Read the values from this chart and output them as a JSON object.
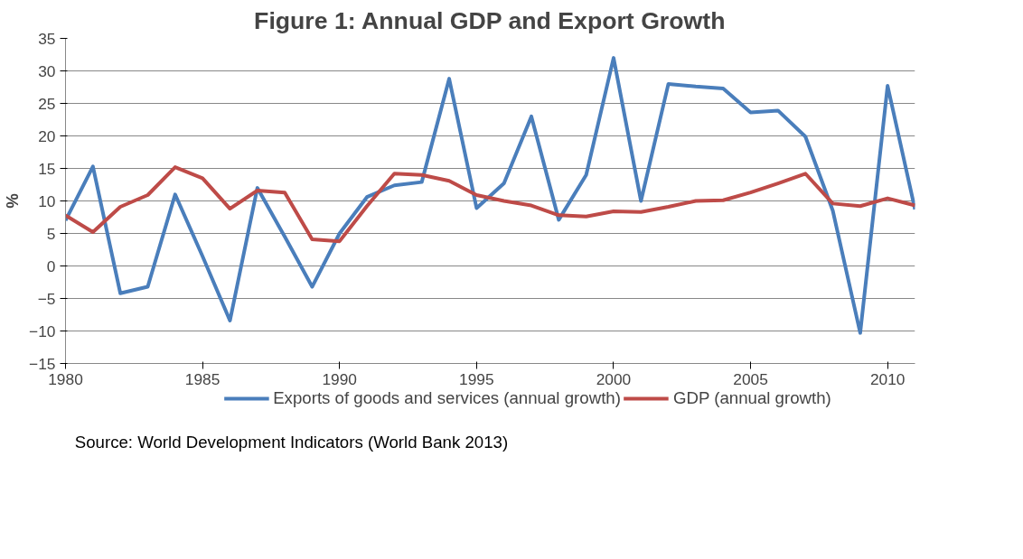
{
  "chart_data": {
    "type": "line",
    "title": "Figure 1: Annual GDP and Export Growth",
    "ylabel": "%",
    "x": [
      1980,
      1981,
      1982,
      1983,
      1984,
      1985,
      1986,
      1987,
      1988,
      1989,
      1990,
      1991,
      1992,
      1993,
      1994,
      1995,
      1996,
      1997,
      1998,
      1999,
      2000,
      2001,
      2002,
      2003,
      2004,
      2005,
      2006,
      2007,
      2008,
      2009,
      2010,
      2011
    ],
    "series": [
      {
        "name": "Exports of goods and services (annual growth)",
        "color": "#4a7ebb",
        "values": [
          7,
          15.3,
          -4.2,
          -3.2,
          11,
          1.5,
          -8.4,
          12,
          4.5,
          -3.2,
          5,
          10.6,
          12.4,
          12.9,
          28.8,
          8.9,
          12.7,
          23,
          7.1,
          14,
          32,
          10,
          28,
          27.6,
          27.3,
          23.6,
          23.9,
          19.9,
          8.5,
          -10.3,
          27.7,
          8.7
        ]
      },
      {
        "name": "GDP (annual growth)",
        "color": "#be4b48",
        "values": [
          7.8,
          5.2,
          9.1,
          10.9,
          15.2,
          13.5,
          8.8,
          11.6,
          11.3,
          4.1,
          3.8,
          9.2,
          14.2,
          14,
          13.1,
          10.9,
          10,
          9.3,
          7.8,
          7.6,
          8.4,
          8.3,
          9.1,
          10,
          10.1,
          11.3,
          12.7,
          14.2,
          9.6,
          9.2,
          10.4,
          9.3
        ]
      }
    ],
    "xlim": [
      1980,
      2011
    ],
    "xticks": [
      1980,
      1985,
      1990,
      1995,
      2000,
      2005,
      2010
    ],
    "ylim": [
      -15,
      35
    ],
    "yticks": [
      -15,
      -10,
      -5,
      0,
      5,
      10,
      15,
      20,
      25,
      30,
      35
    ],
    "grid": "y",
    "legend": "bottom",
    "line_style": "solid",
    "marker": "none",
    "annotations": [
      "Source: World Development Indicators (World Bank 2013)"
    ]
  }
}
